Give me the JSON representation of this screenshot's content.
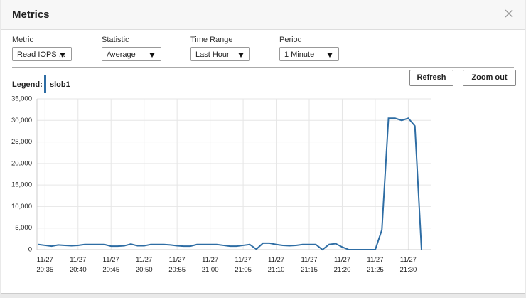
{
  "dialog": {
    "title": "Metrics"
  },
  "controls": [
    {
      "label": "Metric",
      "value": "Read IOPS ..."
    },
    {
      "label": "Statistic",
      "value": "Average"
    },
    {
      "label": "Time Range",
      "value": "Last Hour"
    },
    {
      "label": "Period",
      "value": "1 Minute"
    }
  ],
  "buttons": [
    "Refresh",
    "Zoom out"
  ],
  "chart": {
    "type": "line",
    "legend_title": "Legend:",
    "categories": [
      null,
      "11/27 20:35",
      null,
      null,
      null,
      null,
      "11/27 20:40",
      null,
      null,
      null,
      null,
      "11/27 20:45",
      null,
      null,
      null,
      null,
      "11/27 20:50",
      null,
      null,
      null,
      null,
      "11/27 20:55",
      null,
      null,
      null,
      null,
      "11/27 21:00",
      null,
      null,
      null,
      null,
      "11/27 21:05",
      null,
      null,
      null,
      null,
      "11/27 21:10",
      null,
      null,
      null,
      null,
      "11/27 21:15",
      null,
      null,
      null,
      null,
      "11/27 21:20",
      null,
      null,
      null,
      null,
      "11/27 21:25",
      null,
      null,
      null,
      null,
      "11/27 21:30",
      null,
      null
    ],
    "series": [
      {
        "name": "slob1",
        "color": "#2e6da4",
        "values": [
          1200,
          1000,
          800,
          1100,
          1000,
          900,
          1000,
          1200,
          1200,
          1200,
          1200,
          800,
          800,
          900,
          1300,
          900,
          900,
          1200,
          1200,
          1200,
          1100,
          900,
          800,
          800,
          1200,
          1200,
          1200,
          1200,
          1000,
          800,
          800,
          1000,
          1200,
          100,
          1500,
          1500,
          1200,
          1000,
          900,
          1000,
          1200,
          1200,
          1200,
          0,
          1200,
          1400,
          600,
          0,
          0,
          0,
          0,
          0,
          4600,
          30500,
          30500,
          30000,
          30500,
          28700,
          0
        ]
      }
    ],
    "ylim": [
      0,
      35000
    ],
    "yticks": [
      0,
      {
        "value": 5000,
        "label": "5,000"
      },
      {
        "value": 10000,
        "label": "10,000"
      },
      {
        "value": 15000,
        "label": "15,000"
      },
      {
        "value": 20000,
        "label": "20,000"
      },
      {
        "value": 25000,
        "label": "25,000"
      },
      {
        "value": 30000,
        "label": "30,000"
      },
      {
        "value": 35000,
        "label": "35,000"
      }
    ],
    "grid": true
  }
}
